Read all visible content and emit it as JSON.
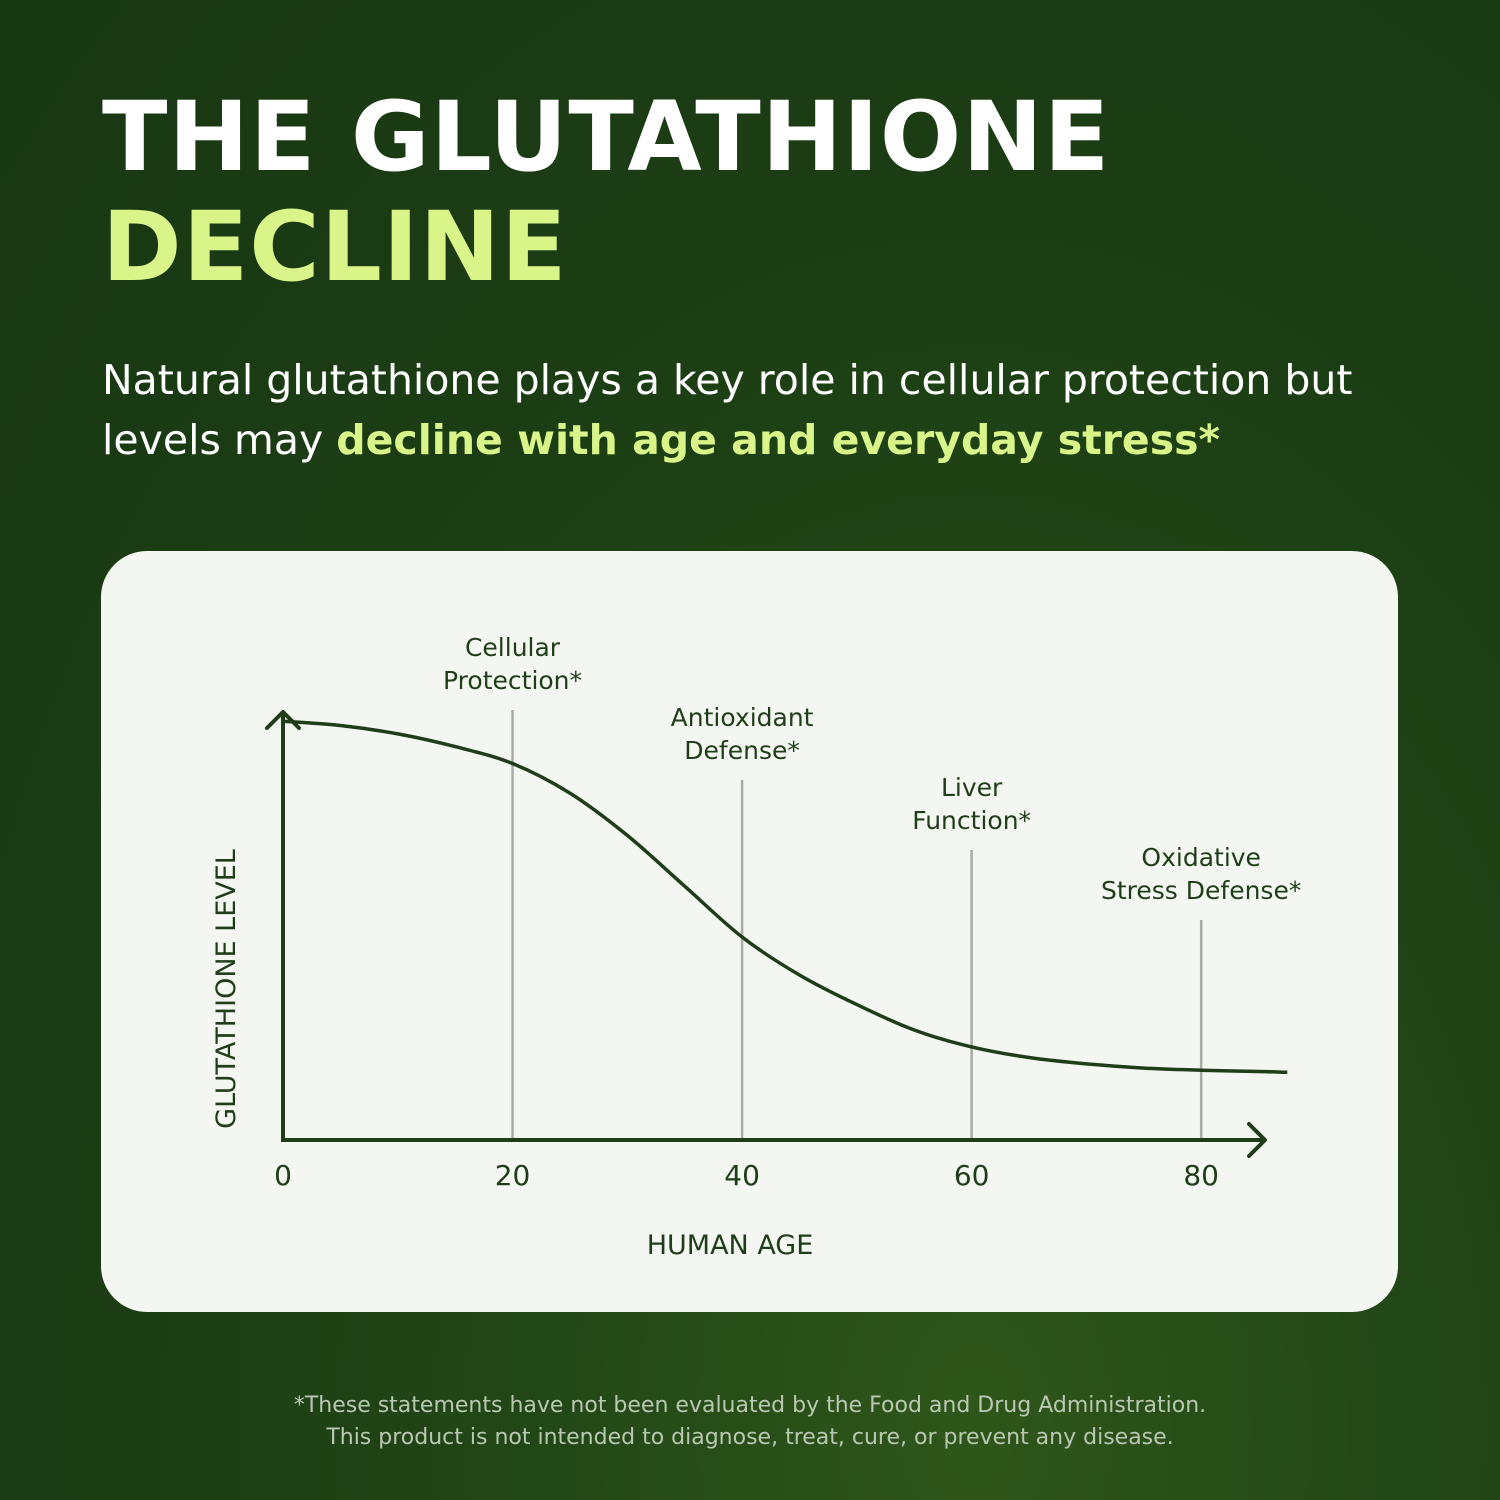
{
  "header": {
    "title_line1": "THE GLUTATHIONE",
    "title_line2": "DECLINE",
    "subtitle_plain": "Natural glutathione plays a key role in cellular protection but levels may ",
    "subtitle_highlight": "decline with age and everyday stress*"
  },
  "colors": {
    "background": "#1c3d14",
    "accent": "#d9f58a",
    "card": "#f3f6f1",
    "curve": "#1f3d18",
    "marker": "#a9aca6"
  },
  "chart_data": {
    "type": "line",
    "xlabel": "HUMAN AGE",
    "ylabel": "GLUTATHIONE LEVEL",
    "xlim": [
      0,
      88
    ],
    "ylim": [
      0,
      100
    ],
    "x_ticks": [
      "0",
      "20",
      "40",
      "60",
      "80"
    ],
    "x_tick_values": [
      0,
      20,
      40,
      60,
      80
    ],
    "series": [
      {
        "x": [
          0,
          5,
          10,
          15,
          20,
          25,
          30,
          35,
          40,
          45,
          50,
          55,
          60,
          65,
          70,
          75,
          80,
          85,
          87.5
        ],
        "y": [
          99,
          98,
          96,
          93,
          89,
          82,
          72,
          60,
          48,
          39,
          32,
          26,
          22,
          19.5,
          18,
          17,
          16.5,
          16.2,
          16
        ]
      }
    ],
    "annotations": [
      {
        "x": 20,
        "line1": "Cellular",
        "line2": "Protection*"
      },
      {
        "x": 40,
        "line1": "Antioxidant",
        "line2": "Defense*"
      },
      {
        "x": 60,
        "line1": "Liver",
        "line2": "Function*"
      },
      {
        "x": 80,
        "line1": "Oxidative",
        "line2": "Stress Defense*"
      }
    ]
  },
  "footnote": {
    "line1": "*These statements have not been evaluated by the Food and Drug Administration.",
    "line2": "This product is not intended to diagnose, treat, cure, or prevent any disease."
  }
}
